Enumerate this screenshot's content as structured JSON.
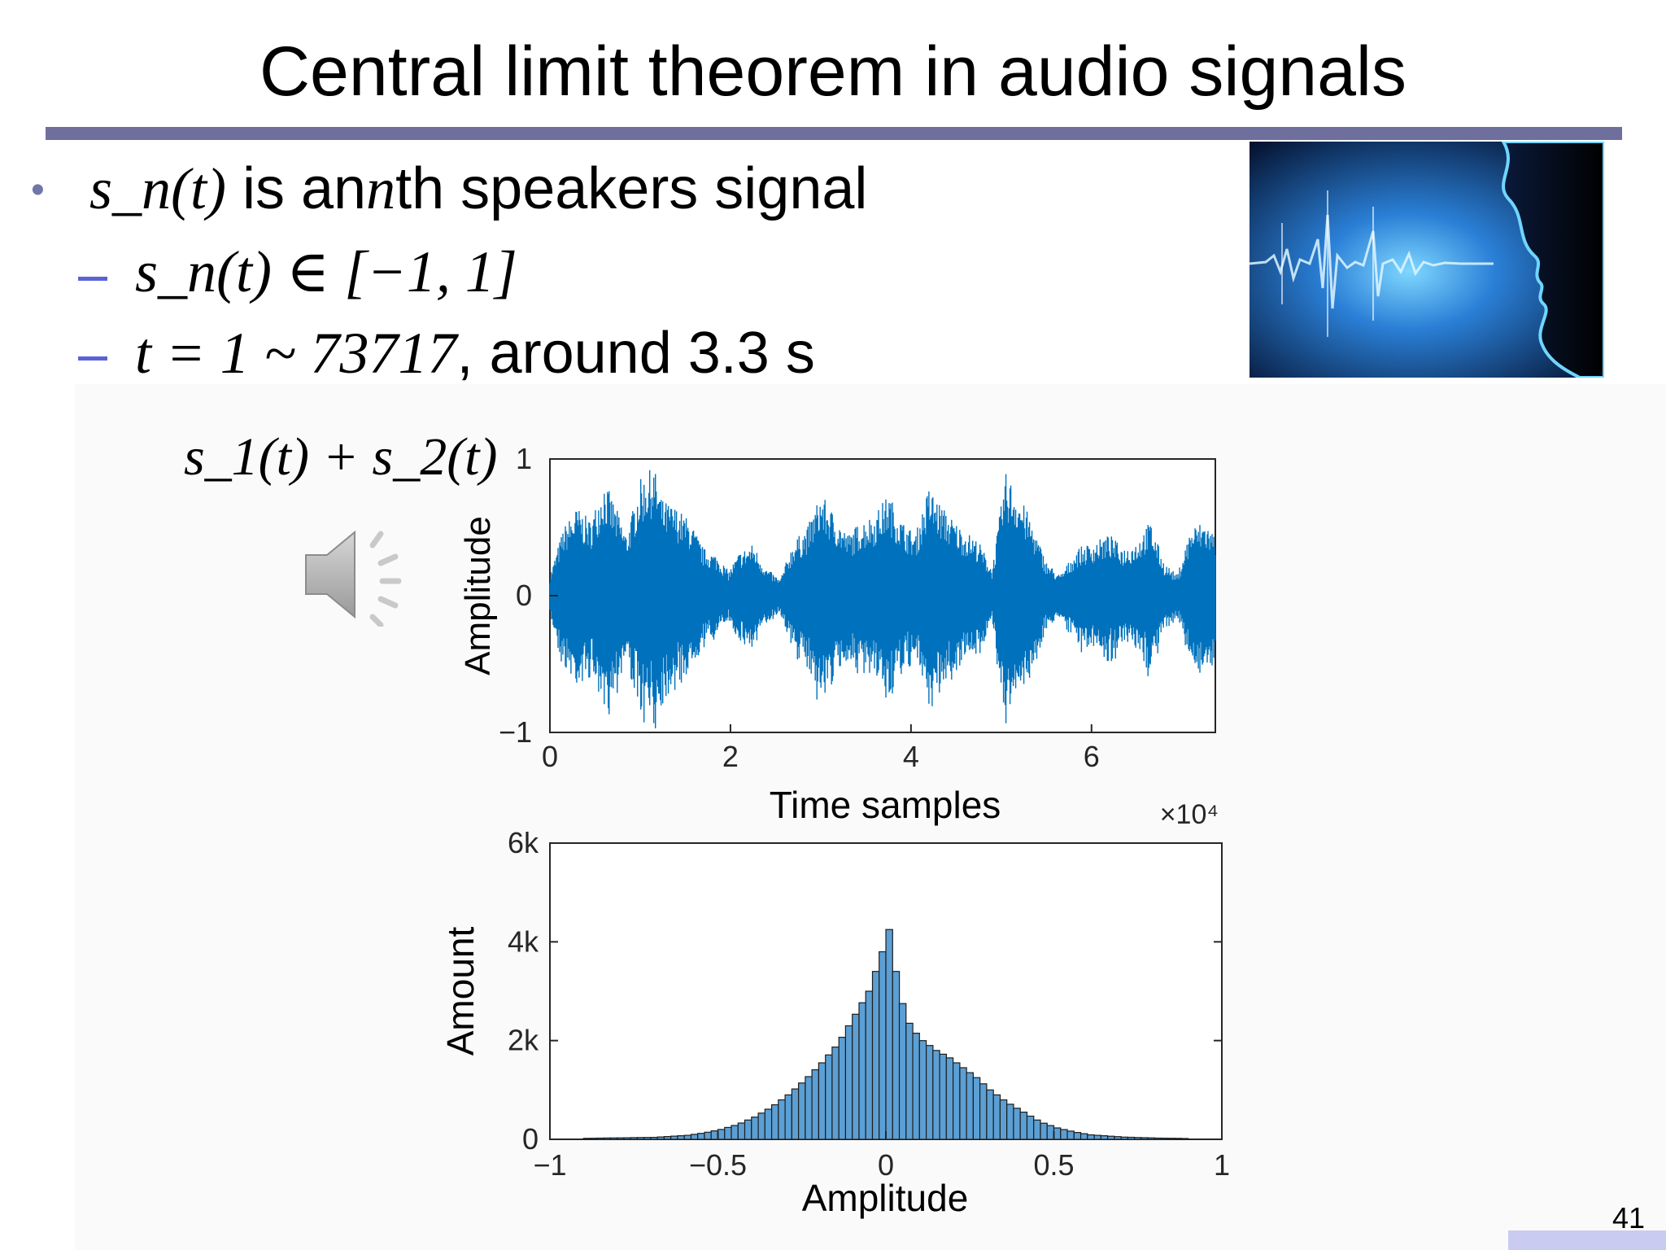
{
  "slide": {
    "title": "Central limit theorem in audio signals",
    "page_number": "41"
  },
  "bullets": {
    "main": {
      "math": "s_n(t)",
      "text_before": "is an",
      "math_n": "n",
      "text_after": "th speakers signal"
    },
    "sub1": {
      "math": "s_n(t) ∈ [−1, 1]"
    },
    "sub2": {
      "math": "t = 1 ~ 73717",
      "text": ", around 3.3 s"
    }
  },
  "figure": {
    "label": "s_1(t) + s_2(t)",
    "speaker_icon": "speaker-volume-icon",
    "photo": "speech-waveform-face-image"
  },
  "chart_data": [
    {
      "type": "line",
      "name": "waveform",
      "xlabel": "Time samples",
      "ylabel": "Amplitude",
      "xlim": [
        0,
        73717
      ],
      "ylim": [
        -1,
        1
      ],
      "x_ticks": [
        "0",
        "2",
        "4",
        "6"
      ],
      "y_ticks": [
        "-1",
        "0",
        "1"
      ],
      "x_exponent_label": "×10⁴",
      "color": "#0072bd",
      "envelope": [
        [
          0,
          0.15
        ],
        [
          1500,
          0.5
        ],
        [
          3000,
          0.65
        ],
        [
          4500,
          0.55
        ],
        [
          6000,
          0.85
        ],
        [
          7000,
          0.7
        ],
        [
          8500,
          0.45
        ],
        [
          10000,
          0.85
        ],
        [
          11500,
          0.95
        ],
        [
          12500,
          0.7
        ],
        [
          14000,
          0.65
        ],
        [
          15500,
          0.55
        ],
        [
          17000,
          0.35
        ],
        [
          18500,
          0.3
        ],
        [
          19800,
          0.18
        ],
        [
          21000,
          0.32
        ],
        [
          22500,
          0.38
        ],
        [
          24000,
          0.2
        ],
        [
          25500,
          0.12
        ],
        [
          27000,
          0.4
        ],
        [
          28500,
          0.5
        ],
        [
          30000,
          0.75
        ],
        [
          31500,
          0.6
        ],
        [
          33000,
          0.45
        ],
        [
          34500,
          0.55
        ],
        [
          36000,
          0.6
        ],
        [
          37500,
          0.75
        ],
        [
          39000,
          0.55
        ],
        [
          40500,
          0.45
        ],
        [
          42000,
          0.8
        ],
        [
          43500,
          0.65
        ],
        [
          45500,
          0.5
        ],
        [
          47500,
          0.4
        ],
        [
          49000,
          0.2
        ],
        [
          50500,
          0.9
        ],
        [
          51500,
          0.8
        ],
        [
          53000,
          0.6
        ],
        [
          55000,
          0.25
        ],
        [
          56500,
          0.15
        ],
        [
          58500,
          0.35
        ],
        [
          60500,
          0.4
        ],
        [
          62000,
          0.45
        ],
        [
          63500,
          0.35
        ],
        [
          65000,
          0.4
        ],
        [
          66500,
          0.55
        ],
        [
          68000,
          0.25
        ],
        [
          69500,
          0.15
        ],
        [
          71000,
          0.5
        ],
        [
          72500,
          0.55
        ],
        [
          73717,
          0.45
        ]
      ]
    },
    {
      "type": "bar",
      "name": "histogram",
      "xlabel": "Amplitude",
      "ylabel": "Amount",
      "xlim": [
        -1,
        1
      ],
      "ylim": [
        0,
        6000
      ],
      "x_ticks": [
        "−1",
        "−0.5",
        "0",
        "0.5",
        "1"
      ],
      "y_ticks": [
        "0",
        "2k",
        "4k",
        "6k"
      ],
      "bin_width": 0.02,
      "color": "#5b9fd4",
      "bins": [
        [
          -0.9,
          20
        ],
        [
          -0.8,
          30
        ],
        [
          -0.7,
          40
        ],
        [
          -0.6,
          80
        ],
        [
          -0.55,
          130
        ],
        [
          -0.5,
          200
        ],
        [
          -0.45,
          300
        ],
        [
          -0.4,
          450
        ],
        [
          -0.35,
          650
        ],
        [
          -0.3,
          900
        ],
        [
          -0.25,
          1200
        ],
        [
          -0.2,
          1550
        ],
        [
          -0.15,
          1950
        ],
        [
          -0.12,
          2300
        ],
        [
          -0.09,
          2650
        ],
        [
          -0.06,
          3000
        ],
        [
          -0.04,
          3400
        ],
        [
          -0.02,
          3800
        ],
        [
          0,
          4250
        ],
        [
          0.02,
          3400
        ],
        [
          0.04,
          2750
        ],
        [
          0.06,
          2350
        ],
        [
          0.08,
          2150
        ],
        [
          0.1,
          2000
        ],
        [
          0.14,
          1800
        ],
        [
          0.18,
          1650
        ],
        [
          0.22,
          1450
        ],
        [
          0.26,
          1250
        ],
        [
          0.3,
          1000
        ],
        [
          0.35,
          750
        ],
        [
          0.4,
          550
        ],
        [
          0.45,
          350
        ],
        [
          0.5,
          230
        ],
        [
          0.55,
          150
        ],
        [
          0.6,
          90
        ],
        [
          0.7,
          45
        ],
        [
          0.8,
          25
        ],
        [
          0.9,
          15
        ]
      ]
    }
  ]
}
